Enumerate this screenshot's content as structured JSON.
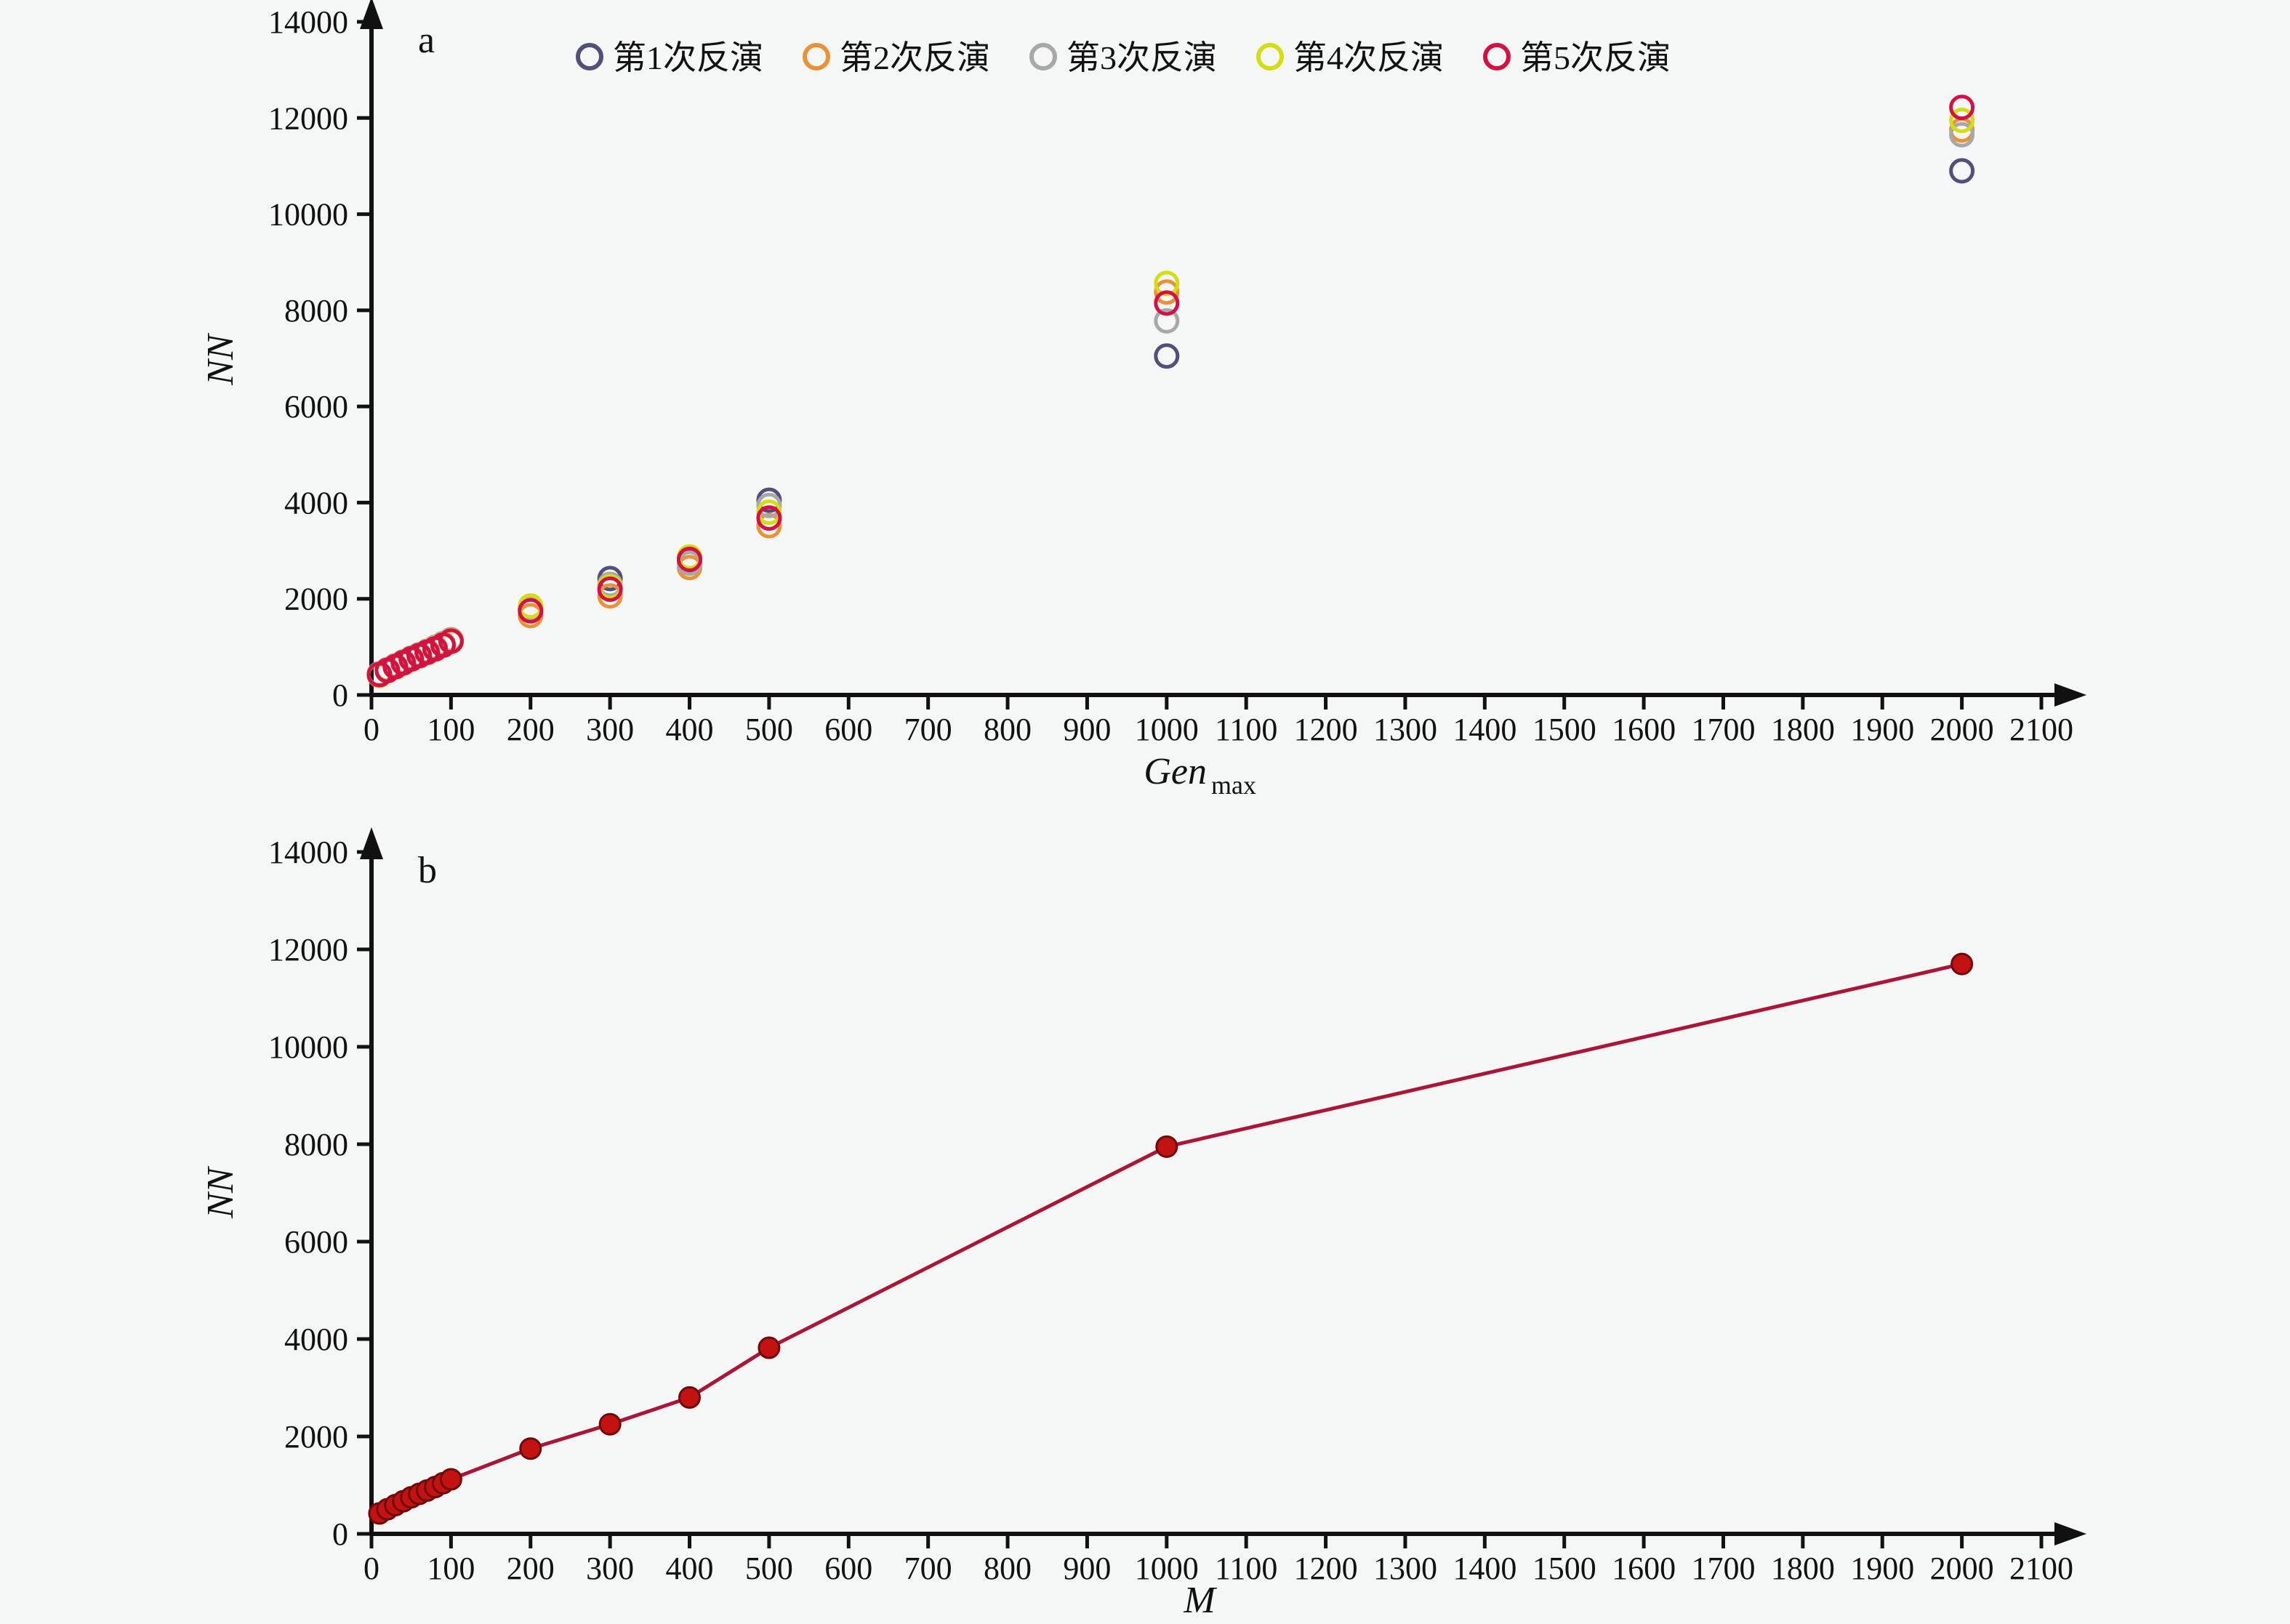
{
  "figure": {
    "background": "#f5f6f6",
    "axis_color": "#111111"
  },
  "chart_data": [
    {
      "id": "a",
      "type": "scatter",
      "panel_label": "a",
      "xlabel_main": "Gen",
      "xlabel_sub": "max",
      "ylabel": "NN",
      "xlim": [
        0,
        2100
      ],
      "ylim": [
        0,
        14000
      ],
      "xtick_step": 100,
      "ytick_step": 2000,
      "grid": false,
      "legend_position": "top",
      "marker": "open-circle",
      "x": [
        10,
        20,
        30,
        40,
        50,
        60,
        70,
        80,
        90,
        100,
        200,
        300,
        400,
        500,
        1000,
        2000
      ],
      "series": [
        {
          "name": "第1次反演",
          "color": "#50507a",
          "values": [
            430,
            520,
            600,
            680,
            760,
            830,
            900,
            980,
            1060,
            1140,
            1780,
            2420,
            2790,
            4050,
            7050,
            10900
          ]
        },
        {
          "name": "第2次反演",
          "color": "#e8923a",
          "values": [
            410,
            500,
            580,
            660,
            740,
            810,
            880,
            950,
            1030,
            1110,
            1650,
            2060,
            2650,
            3520,
            8380,
            11750
          ]
        },
        {
          "name": "第3次反演",
          "color": "#a8a8a8",
          "values": [
            440,
            530,
            610,
            690,
            770,
            840,
            910,
            990,
            1070,
            1150,
            1800,
            2300,
            2740,
            3940,
            7780,
            11650
          ]
        },
        {
          "name": "第4次反演",
          "color": "#d3dd12",
          "values": [
            420,
            515,
            595,
            675,
            755,
            825,
            895,
            970,
            1050,
            1130,
            1850,
            2250,
            2870,
            3800,
            8560,
            11950
          ]
        },
        {
          "name": "第5次反演",
          "color": "#d31145",
          "values": [
            425,
            510,
            590,
            670,
            750,
            820,
            890,
            960,
            1040,
            1120,
            1750,
            2200,
            2820,
            3680,
            8150,
            12220
          ]
        }
      ]
    },
    {
      "id": "b",
      "type": "line",
      "panel_label": "b",
      "xlabel_main": "M",
      "xlabel_sub": "",
      "ylabel": "NN",
      "xlim": [
        0,
        2100
      ],
      "ylim": [
        0,
        14000
      ],
      "xtick_step": 100,
      "ytick_step": 2000,
      "grid": false,
      "legend_position": "none",
      "marker": "filled-circle",
      "x": [
        10,
        20,
        30,
        40,
        50,
        60,
        70,
        80,
        90,
        100,
        200,
        300,
        400,
        500,
        1000,
        2000
      ],
      "series": [
        {
          "name": "NN",
          "color": "#aa1638",
          "marker_fill": "#c31212",
          "marker_edge": "#6e0a0a",
          "values": [
            420,
            505,
            590,
            670,
            750,
            820,
            890,
            960,
            1040,
            1120,
            1750,
            2250,
            2800,
            3820,
            7950,
            11700
          ]
        }
      ]
    }
  ]
}
